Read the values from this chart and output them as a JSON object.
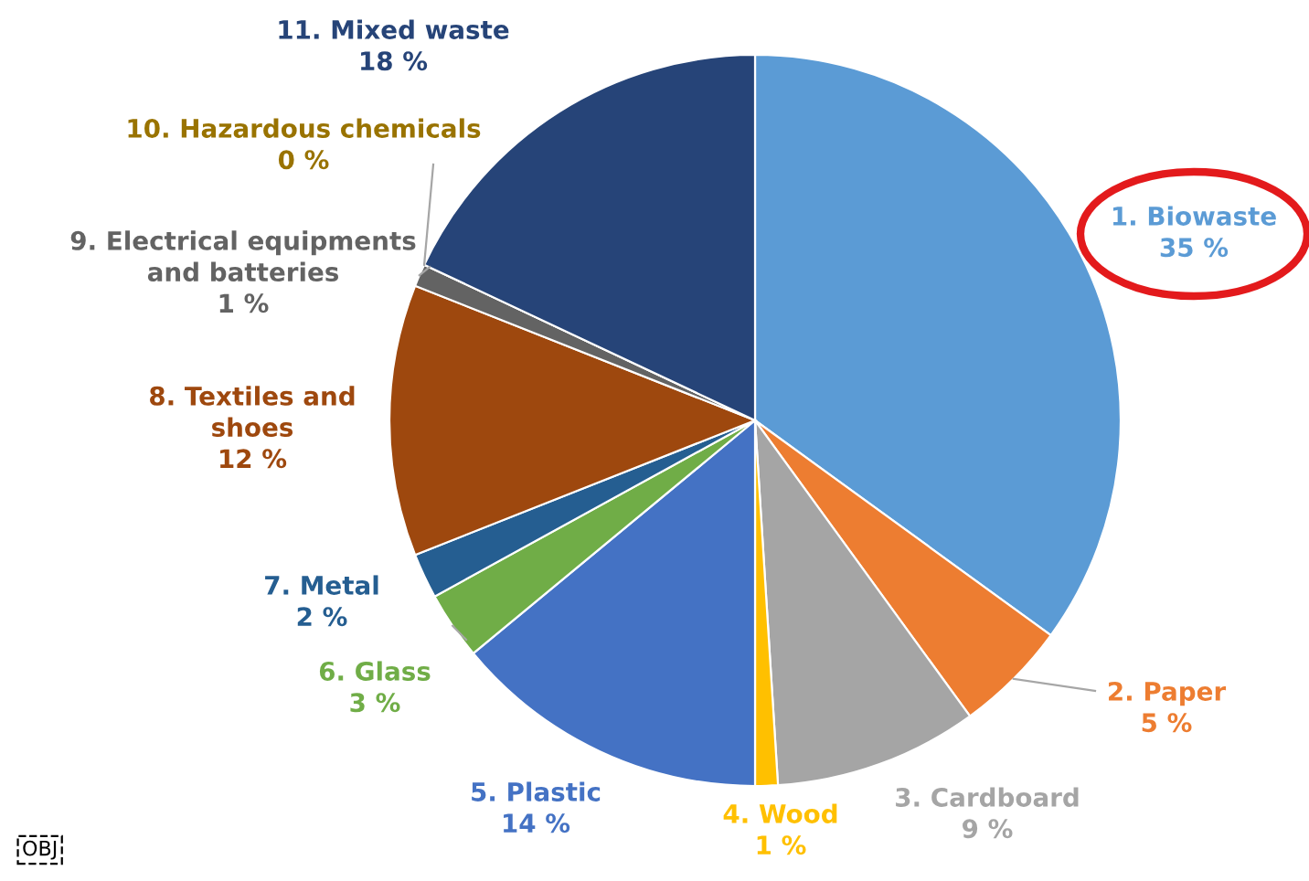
{
  "chart_data": {
    "type": "pie",
    "categories": [
      "1. Biowaste",
      "2. Paper",
      "3. Cardboard",
      "4. Wood",
      "5. Plastic",
      "6. Glass",
      "7. Metal",
      "8. Textiles and\nshoes",
      "9. Electrical equipments\nand batteries",
      "10. Hazardous chemicals",
      "11. Mixed waste"
    ],
    "values": [
      35,
      5,
      9,
      1,
      14,
      3,
      2,
      12,
      1,
      0,
      18
    ],
    "value_labels": [
      "35 %",
      "5 %",
      "9 %",
      "1 %",
      "14 %",
      "3 %",
      "2 %",
      "12 %",
      "1 %",
      "0 %",
      "18 %"
    ],
    "colors": [
      "#5b9bd5",
      "#ed7d31",
      "#a5a5a5",
      "#ffc000",
      "#4472c4",
      "#70ad47",
      "#255e91",
      "#9e480e",
      "#636363",
      "#997300",
      "#264478"
    ],
    "annotations": [
      "OBJ"
    ],
    "legend": false
  }
}
